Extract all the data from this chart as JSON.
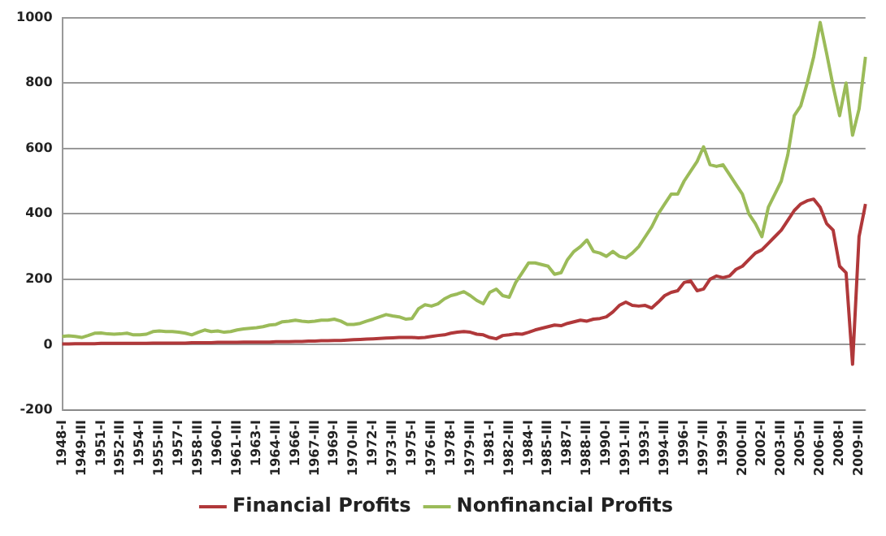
{
  "chart_data": {
    "type": "line",
    "categories": [
      "1948-I",
      null,
      null,
      "1949-III",
      null,
      null,
      "1951-I",
      null,
      null,
      "1952-III",
      null,
      null,
      "1954-I",
      null,
      null,
      "1955-III",
      null,
      null,
      "1957-I",
      null,
      null,
      "1958-III",
      null,
      null,
      "1960-I",
      null,
      null,
      "1961-III",
      null,
      null,
      "1963-I",
      null,
      null,
      "1964-III",
      null,
      null,
      "1966-I",
      null,
      null,
      "1967-III",
      null,
      null,
      "1969-I",
      null,
      null,
      "1970-III",
      null,
      null,
      "1972-I",
      null,
      null,
      "1973-III",
      null,
      null,
      "1975-I",
      null,
      null,
      "1976-III",
      null,
      null,
      "1978-I",
      null,
      null,
      "1979-III",
      null,
      null,
      "1981-I",
      null,
      null,
      "1982-III",
      null,
      null,
      "1984-I",
      null,
      null,
      "1985-III",
      null,
      null,
      "1987-I",
      null,
      null,
      "1988-III",
      null,
      null,
      "1990-I",
      null,
      null,
      "1991-III",
      null,
      null,
      "1993-I",
      null,
      null,
      "1994-III",
      null,
      null,
      "1996-I",
      null,
      null,
      "1997-III",
      null,
      null,
      "1999-I",
      null,
      null,
      "2000-III",
      null,
      null,
      "2002-I",
      null,
      null,
      "2003-III",
      null,
      null,
      "2005-I",
      null,
      null,
      "2006-III",
      null,
      null,
      "2008-I",
      null,
      null,
      "2009-III",
      null
    ],
    "series": [
      {
        "name": "Financial Profits",
        "color": "#b0383a",
        "values": [
          2,
          2,
          3,
          3,
          3,
          3,
          4,
          4,
          4,
          4,
          4,
          4,
          4,
          4,
          5,
          5,
          5,
          5,
          5,
          5,
          6,
          6,
          6,
          6,
          7,
          7,
          7,
          7,
          8,
          8,
          8,
          8,
          8,
          9,
          9,
          9,
          10,
          10,
          11,
          11,
          12,
          12,
          13,
          13,
          14,
          15,
          16,
          17,
          18,
          19,
          20,
          21,
          22,
          22,
          22,
          21,
          22,
          25,
          28,
          30,
          35,
          38,
          40,
          38,
          32,
          30,
          22,
          18,
          28,
          30,
          33,
          32,
          38,
          45,
          50,
          55,
          60,
          58,
          65,
          70,
          75,
          72,
          78,
          80,
          85,
          100,
          120,
          130,
          120,
          118,
          120,
          112,
          130,
          150,
          160,
          165,
          190,
          195,
          165,
          170,
          200,
          210,
          205,
          210,
          230,
          240,
          260,
          280,
          290,
          310,
          330,
          350,
          380,
          410,
          430,
          440,
          445,
          420,
          370,
          350,
          240,
          220,
          -60,
          330,
          430
        ]
      },
      {
        "name": "Nonfinancial Profits",
        "color": "#9bbb59",
        "values": [
          25,
          27,
          25,
          22,
          28,
          35,
          36,
          33,
          32,
          33,
          35,
          30,
          30,
          32,
          40,
          42,
          40,
          40,
          38,
          35,
          30,
          38,
          45,
          40,
          42,
          38,
          40,
          45,
          48,
          50,
          52,
          55,
          60,
          62,
          70,
          72,
          75,
          72,
          70,
          72,
          75,
          75,
          78,
          72,
          62,
          62,
          65,
          72,
          78,
          85,
          92,
          88,
          85,
          78,
          80,
          110,
          122,
          118,
          125,
          140,
          150,
          155,
          162,
          150,
          135,
          125,
          160,
          170,
          150,
          145,
          190,
          220,
          250,
          250,
          245,
          240,
          215,
          220,
          260,
          285,
          300,
          320,
          285,
          280,
          270,
          285,
          270,
          265,
          280,
          300,
          330,
          360,
          400,
          430,
          460,
          460,
          500,
          530,
          560,
          605,
          550,
          545,
          550,
          520,
          490,
          460,
          400,
          370,
          330,
          420,
          460,
          500,
          580,
          700,
          730,
          800,
          880,
          985,
          890,
          790,
          700,
          800,
          640,
          720,
          880
        ]
      }
    ],
    "ylim": [
      -200,
      1000
    ],
    "yticks": [
      -200,
      0,
      200,
      400,
      600,
      800,
      1000
    ],
    "grid": "y",
    "legend": "bottom",
    "marker": "none",
    "line_style": "solid"
  }
}
